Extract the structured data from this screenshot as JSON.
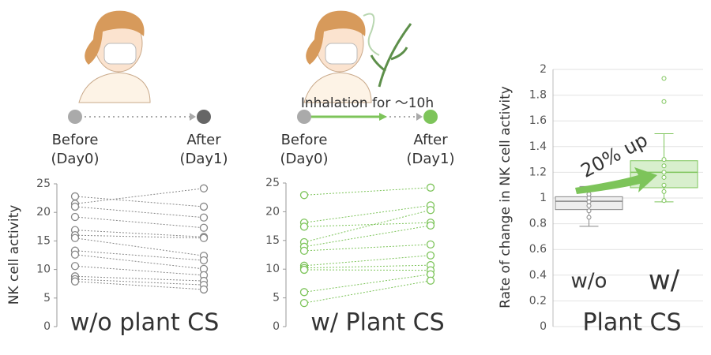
{
  "chart_data": [
    {
      "type": "paired",
      "title": "w/o plant CS",
      "ylabel": "NK cell activity",
      "categories": [
        "Before",
        "After"
      ],
      "category_sublabels": [
        "(Day0)",
        "(Day1)"
      ],
      "ylim": [
        0,
        25
      ],
      "yticks": [
        0,
        5,
        10,
        15,
        20,
        25
      ],
      "color": "#888888",
      "values_before": [
        22.8,
        21.5,
        21.0,
        19.2,
        16.9,
        16.0,
        15.5,
        13.3,
        12.6,
        10.6,
        8.8,
        8.3,
        7.9
      ],
      "values_after": [
        21.0,
        24.2,
        19.1,
        17.3,
        15.7,
        15.5,
        12.4,
        11.6,
        10.1,
        9.0,
        8.0,
        7.3,
        6.5
      ]
    },
    {
      "type": "paired",
      "title": "w/ Plant CS",
      "annotation": "Inhalation for ～10h",
      "categories": [
        "Before",
        "After"
      ],
      "category_sublabels": [
        "(Day0)",
        "(Day1)"
      ],
      "ylim": [
        0,
        25
      ],
      "yticks": [
        0,
        5,
        10,
        15,
        20,
        25
      ],
      "color": "#7dc45a",
      "values_before": [
        22.9,
        18.1,
        17.4,
        14.7,
        13.9,
        13.2,
        10.6,
        10.2,
        9.9,
        6.0,
        4.1
      ],
      "values_after": [
        24.2,
        21.1,
        18.1,
        20.3,
        17.6,
        14.3,
        12.4,
        10.7,
        9.8,
        9.1,
        8.0
      ]
    },
    {
      "type": "box",
      "ylabel": "Rate of change in NK cell activity",
      "xlabel": "Plant CS",
      "annotation": "20% up",
      "ylim": [
        0,
        2
      ],
      "yticks": [
        0,
        0.2,
        0.4,
        0.6,
        0.8,
        1,
        1.2,
        1.4,
        1.6,
        1.8,
        2
      ],
      "grid": true,
      "series": [
        {
          "name": "w/o",
          "color": "#888888",
          "whislo": 0.78,
          "q1": 0.91,
          "med": 0.975,
          "q3": 1.01,
          "whishi": 1.09,
          "points": [
            0.85,
            0.9,
            0.94,
            0.97,
            1.0,
            1.03,
            1.06
          ],
          "outliers": []
        },
        {
          "name": "w/",
          "color": "#7dc45a",
          "whislo": 0.97,
          "q1": 1.08,
          "med": 1.2,
          "q3": 1.29,
          "whishi": 1.5,
          "points": [
            0.98,
            1.05,
            1.1,
            1.16,
            1.2,
            1.25,
            1.3
          ],
          "outliers": [
            1.75,
            1.93
          ]
        }
      ]
    }
  ]
}
